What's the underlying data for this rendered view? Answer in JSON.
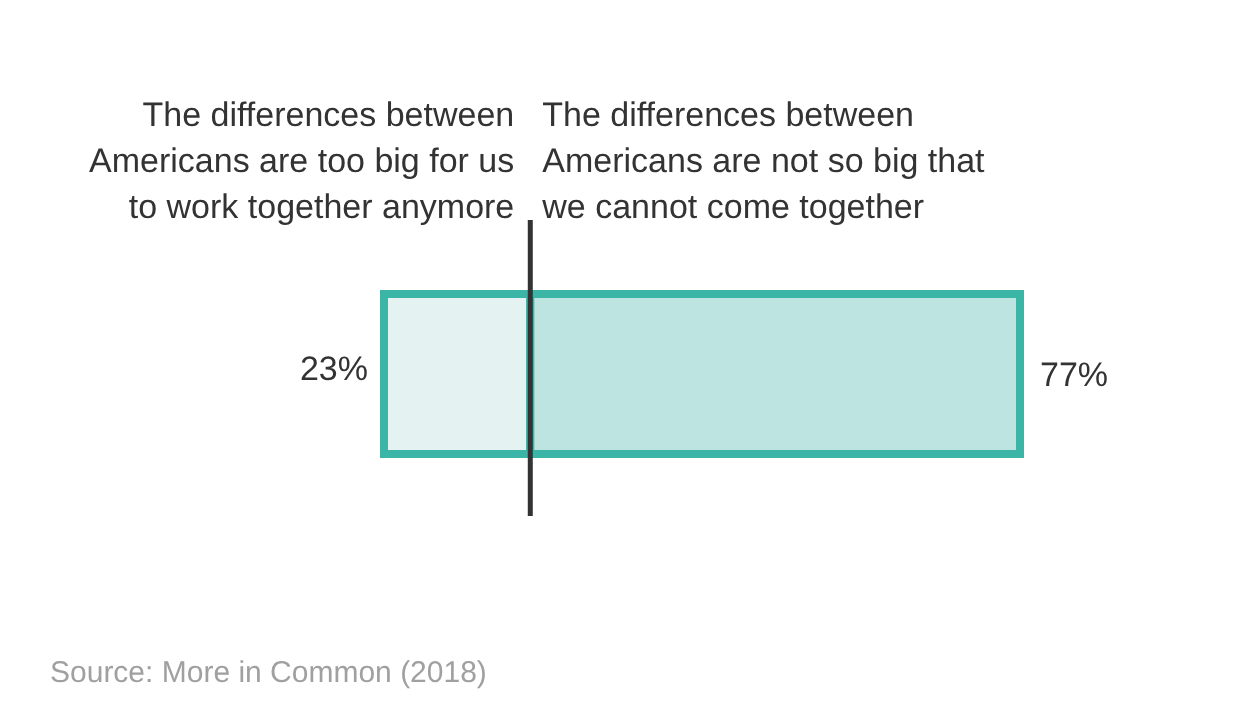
{
  "chart_data": {
    "type": "bar",
    "orientation": "horizontal",
    "stacked": true,
    "categories": [
      null
    ],
    "xlim": [
      0,
      100
    ],
    "tick_labels": false,
    "series": [
      {
        "name": "The differences between Americans are too big for us to work together anymore",
        "color": "#e4f2f2",
        "values": [
          23
        ],
        "value_labels": [
          "23%"
        ]
      },
      {
        "name": "The differences between Americans are not so big that we cannot come together",
        "color": "#bde4e0",
        "values": [
          77
        ],
        "value_labels": [
          "77%"
        ]
      }
    ],
    "ref_lines": [
      {
        "axis": "x",
        "value": 23,
        "color": "#333333"
      }
    ],
    "annotations": [
      "Source: More in Common (2018)"
    ]
  }
}
